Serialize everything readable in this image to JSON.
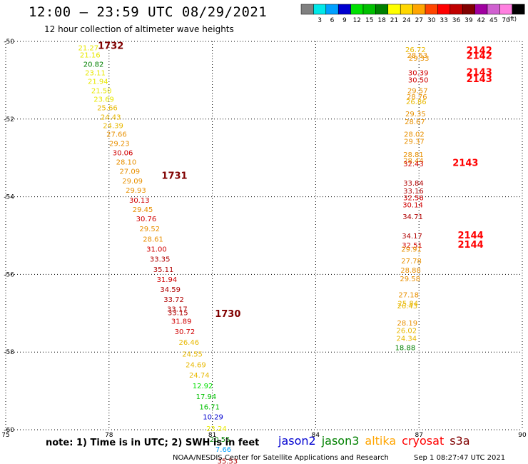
{
  "title": "12:00 – 23:59 UTC 08/29/2021",
  "subtitle": "12 hour collection of altimeter wave heights",
  "note": "note:  1) Time is in UTC;  2) SWH is in feet",
  "credit": "NOAA/NESDIS Center for Satellite Applications and Research",
  "timestamp": "Sep  1 08:27:47 UTC 2021",
  "colorbar": {
    "unit": "(ft)",
    "ticks": [
      "3",
      "6",
      "9",
      "12",
      "15",
      "18",
      "21",
      "24",
      "27",
      "30",
      "33",
      "36",
      "39",
      "42",
      "45",
      "70"
    ],
    "colors": [
      "#808080",
      "#00e8e8",
      "#00a0ff",
      "#0000d0",
      "#00e000",
      "#00c000",
      "#008000",
      "#ffff00",
      "#ffd700",
      "#ffa500",
      "#ff4500",
      "#ff0000",
      "#c00000",
      "#800000",
      "#a000a0",
      "#d060d0",
      "#ff80e0",
      "#000000"
    ]
  },
  "satellites": [
    {
      "name": "jason2",
      "color": "#0000d0"
    },
    {
      "name": "jason3",
      "color": "#008000"
    },
    {
      "name": "altika",
      "color": "#ffa500"
    },
    {
      "name": "cryosat",
      "color": "#ff0000"
    },
    {
      "name": "s3a",
      "color": "#800000"
    }
  ],
  "chart_data": {
    "type": "scatter",
    "xlim": [
      75,
      90
    ],
    "ylim": [
      -60,
      -50
    ],
    "xticks": [
      "75",
      "78",
      "81",
      "84",
      "87",
      "90"
    ],
    "yticks": [
      "-50",
      "-52",
      "-54",
      "-56",
      "-58",
      "-60"
    ],
    "grid": true,
    "series": [
      {
        "name": "track_west",
        "points": [
          {
            "x": 77.4,
            "y": -50.16,
            "v": "21.27"
          },
          {
            "x": 77.45,
            "y": -50.34,
            "v": "21.16"
          },
          {
            "x": 77.55,
            "y": -50.58,
            "v": "20.82"
          },
          {
            "x": 77.6,
            "y": -50.8,
            "v": "23.11"
          },
          {
            "x": 77.68,
            "y": -51.02,
            "v": "21.94"
          },
          {
            "x": 77.78,
            "y": -51.26,
            "v": "21.50"
          },
          {
            "x": 77.85,
            "y": -51.48,
            "v": "23.69"
          },
          {
            "x": 77.95,
            "y": -51.7,
            "v": "25.66"
          },
          {
            "x": 78.05,
            "y": -51.94,
            "v": "24.43"
          },
          {
            "x": 78.12,
            "y": -52.16,
            "v": "24.39"
          },
          {
            "x": 78.22,
            "y": -52.38,
            "v": "27.66"
          },
          {
            "x": 78.3,
            "y": -52.62,
            "v": "29.23"
          },
          {
            "x": 78.4,
            "y": -52.86,
            "v": "30.06"
          },
          {
            "x": 78.5,
            "y": -53.1,
            "v": "28.10"
          },
          {
            "x": 78.6,
            "y": -53.34,
            "v": "27.09"
          },
          {
            "x": 78.68,
            "y": -53.58,
            "v": "29.09"
          },
          {
            "x": 78.78,
            "y": -53.82,
            "v": "29.93"
          },
          {
            "x": 78.88,
            "y": -54.08,
            "v": "30.13"
          },
          {
            "x": 78.98,
            "y": -54.32,
            "v": "29.45"
          },
          {
            "x": 79.08,
            "y": -54.56,
            "v": "30.76"
          },
          {
            "x": 79.18,
            "y": -54.82,
            "v": "29.52"
          },
          {
            "x": 79.28,
            "y": -55.08,
            "v": "28.61"
          },
          {
            "x": 79.38,
            "y": -55.34,
            "v": "31.00"
          },
          {
            "x": 79.48,
            "y": -55.6,
            "v": "33.35"
          },
          {
            "x": 79.58,
            "y": -55.86,
            "v": "35.11"
          },
          {
            "x": 79.68,
            "y": -56.12,
            "v": "31.94"
          },
          {
            "x": 79.78,
            "y": -56.38,
            "v": "34.59"
          },
          {
            "x": 79.88,
            "y": -56.64,
            "v": "33.72"
          },
          {
            "x": 79.98,
            "y": -56.88,
            "v": "33.17"
          },
          {
            "x": 80.0,
            "y": -56.98,
            "v": "33.15"
          },
          {
            "x": 80.1,
            "y": -57.2,
            "v": "31.89"
          },
          {
            "x": 80.2,
            "y": -57.46,
            "v": "30.72"
          },
          {
            "x": 80.32,
            "y": -57.74,
            "v": "26.46"
          },
          {
            "x": 80.42,
            "y": -58.04,
            "v": "24.55"
          },
          {
            "x": 80.52,
            "y": -58.32,
            "v": "24.69"
          },
          {
            "x": 80.62,
            "y": -58.58,
            "v": "24.74"
          },
          {
            "x": 80.72,
            "y": -58.86,
            "v": "12.92"
          },
          {
            "x": 80.82,
            "y": -59.14,
            "v": "17.94"
          },
          {
            "x": 80.92,
            "y": -59.4,
            "v": "16.71"
          },
          {
            "x": 81.02,
            "y": -59.66,
            "v": "10.29"
          },
          {
            "x": 81.12,
            "y": -59.96,
            "v": "23.24"
          },
          {
            "x": 81.22,
            "y": -60.24,
            "v": "20.55"
          },
          {
            "x": 81.32,
            "y": -60.5,
            "v": "7.66"
          },
          {
            "x": 81.44,
            "y": -60.8,
            "v": "35.53"
          }
        ]
      },
      {
        "name": "track_east",
        "points": [
          {
            "x": 86.9,
            "y": -50.2,
            "v": "26.72"
          },
          {
            "x": 86.95,
            "y": -50.35,
            "v": "28.63"
          },
          {
            "x": 87.0,
            "y": -50.42,
            "v": "29.33"
          },
          {
            "x": 86.98,
            "y": -50.8,
            "v": "30.39"
          },
          {
            "x": 86.98,
            "y": -50.98,
            "v": "30.50"
          },
          {
            "x": 86.96,
            "y": -51.26,
            "v": "29.57"
          },
          {
            "x": 86.94,
            "y": -51.42,
            "v": "28.76"
          },
          {
            "x": 86.92,
            "y": -51.54,
            "v": "26.86"
          },
          {
            "x": 86.9,
            "y": -51.86,
            "v": "29.35"
          },
          {
            "x": 86.88,
            "y": -52.06,
            "v": "28.67"
          },
          {
            "x": 86.86,
            "y": -52.38,
            "v": "28.02"
          },
          {
            "x": 86.86,
            "y": -52.56,
            "v": "29.37"
          },
          {
            "x": 86.84,
            "y": -52.9,
            "v": "28.81"
          },
          {
            "x": 86.84,
            "y": -53.06,
            "v": "28.44"
          },
          {
            "x": 86.84,
            "y": -53.14,
            "v": "32.43"
          },
          {
            "x": 86.84,
            "y": -53.64,
            "v": "33.84"
          },
          {
            "x": 86.84,
            "y": -53.84,
            "v": "33.16"
          },
          {
            "x": 86.84,
            "y": -54.02,
            "v": "32.56"
          },
          {
            "x": 86.82,
            "y": -54.2,
            "v": "30.14"
          },
          {
            "x": 86.82,
            "y": -54.5,
            "v": "34.71"
          },
          {
            "x": 86.8,
            "y": -55.0,
            "v": "34.17"
          },
          {
            "x": 86.8,
            "y": -55.24,
            "v": "32.51"
          },
          {
            "x": 86.78,
            "y": -55.34,
            "v": "29.91"
          },
          {
            "x": 86.78,
            "y": -55.64,
            "v": "27.78"
          },
          {
            "x": 86.76,
            "y": -55.88,
            "v": "28.88"
          },
          {
            "x": 86.74,
            "y": -56.1,
            "v": "29.58"
          },
          {
            "x": 86.7,
            "y": -56.52,
            "v": "27.18"
          },
          {
            "x": 86.68,
            "y": -56.74,
            "v": "25.84"
          },
          {
            "x": 86.66,
            "y": -56.8,
            "v": "26.43"
          },
          {
            "x": 86.66,
            "y": -57.24,
            "v": "28.19"
          },
          {
            "x": 86.64,
            "y": -57.44,
            "v": "26.02"
          },
          {
            "x": 86.64,
            "y": -57.64,
            "v": "24.34"
          },
          {
            "x": 86.6,
            "y": -57.88,
            "v": "18.88"
          }
        ]
      }
    ],
    "time_labels": [
      {
        "x": 78.05,
        "y": -50.1,
        "t": "1732",
        "color": "#800000"
      },
      {
        "x": 79.9,
        "y": -53.45,
        "t": "1731",
        "color": "#800000"
      },
      {
        "x": 81.45,
        "y": -57.0,
        "t": "1730",
        "color": "#800000"
      },
      {
        "x": 88.75,
        "y": -50.22,
        "t": "2142",
        "color": "#ff0000"
      },
      {
        "x": 88.75,
        "y": -50.36,
        "t": "2142",
        "color": "#ff0000"
      },
      {
        "x": 88.75,
        "y": -50.78,
        "t": "2143",
        "color": "#ff0000"
      },
      {
        "x": 88.75,
        "y": -50.96,
        "t": "2143",
        "color": "#ff0000"
      },
      {
        "x": 88.35,
        "y": -53.12,
        "t": "2143",
        "color": "#ff0000"
      },
      {
        "x": 88.5,
        "y": -54.98,
        "t": "2144",
        "color": "#ff0000"
      },
      {
        "x": 88.5,
        "y": -55.22,
        "t": "2144",
        "color": "#ff0000"
      }
    ]
  }
}
